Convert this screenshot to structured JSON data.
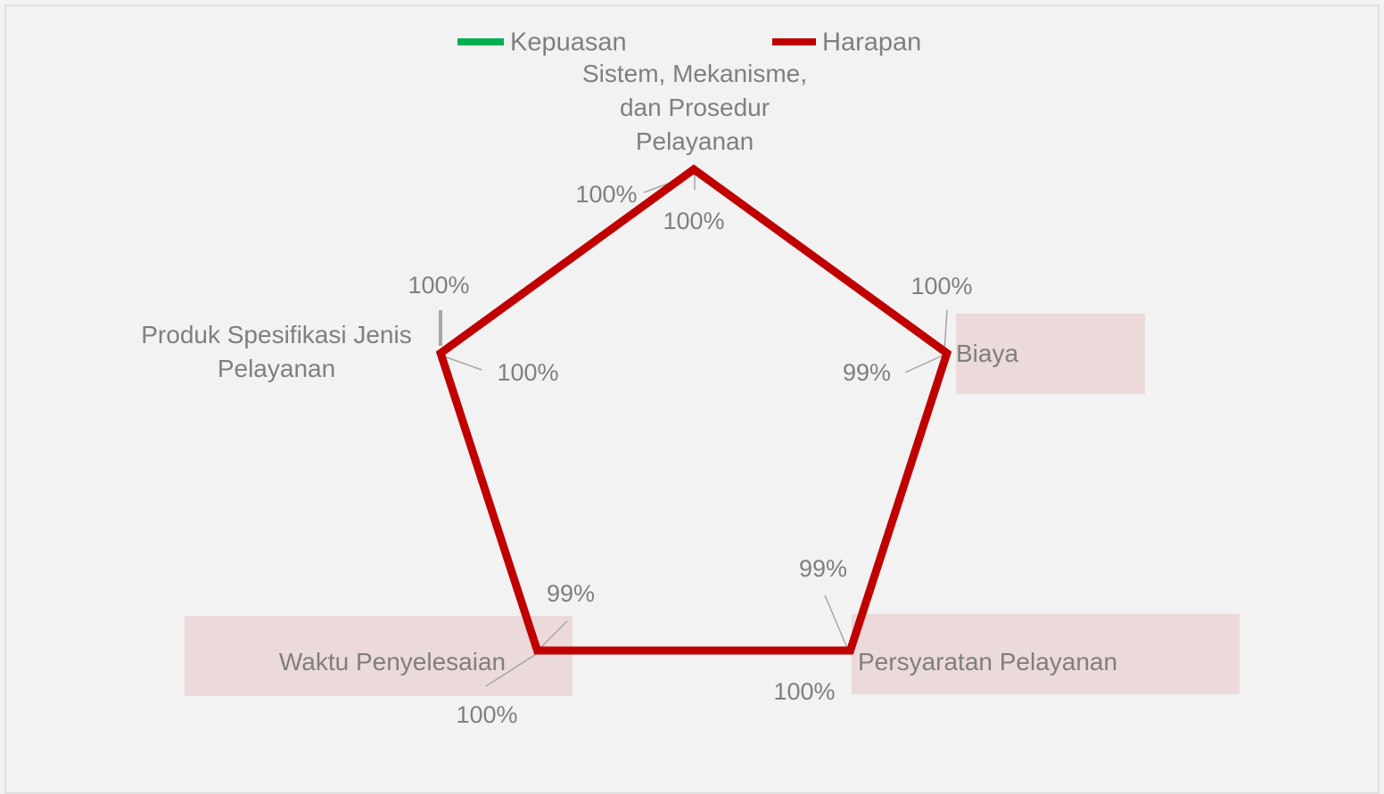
{
  "chart_data": {
    "type": "radar",
    "categories": [
      "Sistem, Mekanisme, dan Prosedur Pelayanan",
      "Biaya",
      "Persyaratan Pelayanan",
      "Waktu Penyelesaian",
      "Produk Spesifikasi Jenis Pelayanan"
    ],
    "series": [
      {
        "name": "Kepuasan",
        "color": "#00b050",
        "values": [
          100,
          99,
          99,
          99,
          100
        ],
        "value_labels": [
          "100%",
          "99%",
          "99%",
          "99%",
          "100%"
        ]
      },
      {
        "name": "Harapan",
        "color": "#c00000",
        "values": [
          100,
          100,
          100,
          100,
          100
        ],
        "value_labels": [
          "100%",
          "100%",
          "100%",
          "100%",
          "100%"
        ]
      }
    ],
    "rlim": [
      0,
      100
    ],
    "legend": "top"
  }
}
